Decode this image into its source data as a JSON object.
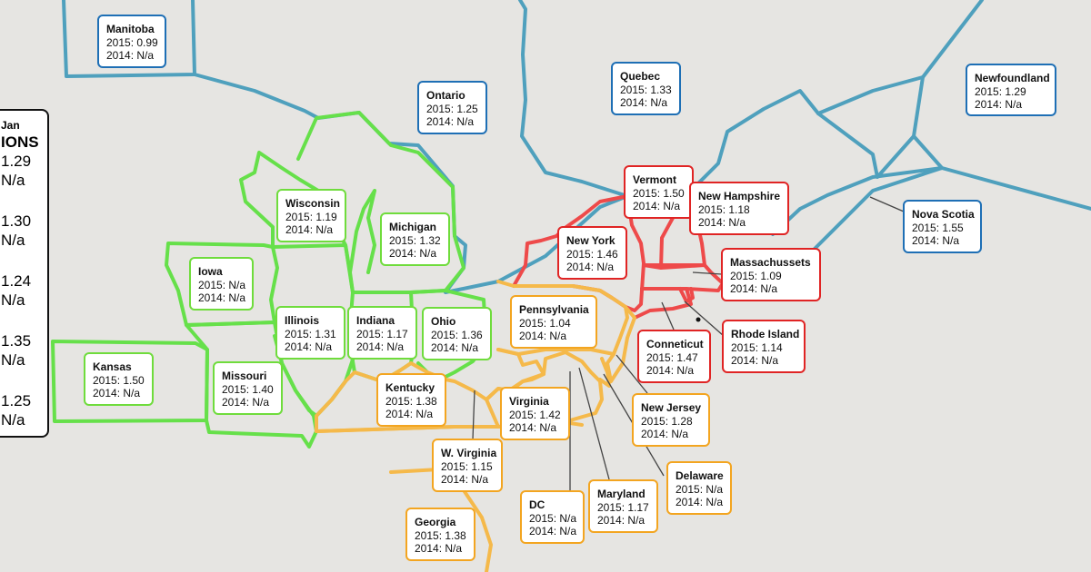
{
  "legend": {
    "month": "Jan",
    "heading": "IONS",
    "rows": [
      {
        "v2015": "1.29",
        "v2014": "N/a"
      },
      {
        "v2015": "1.30",
        "v2014": "N/a"
      },
      {
        "v2015": "1.24",
        "v2014": "N/a"
      },
      {
        "v2015": "1.35",
        "v2014": "N/a"
      },
      {
        "v2015": "1.25",
        "v2014": "N/a"
      }
    ]
  },
  "colors": {
    "background": "#e6e5e2",
    "canada": "#4fa0bd",
    "midwest": "#66e04a",
    "northeast": "#ee4a4a",
    "south": "#f5b94a",
    "card_canada": "#1e6fb5",
    "card_midwest": "#6fdc3c",
    "card_northeast": "#e02424",
    "card_south": "#f3a520"
  },
  "regions": [
    {
      "id": "manitoba",
      "name": "Manitoba",
      "v2015": "2015: 0.99",
      "v2014": "2014: N/a",
      "group": "blue"
    },
    {
      "id": "ontario",
      "name": "Ontario",
      "v2015": "2015: 1.25",
      "v2014": "2014: N/a",
      "group": "blue"
    },
    {
      "id": "quebec",
      "name": "Quebec",
      "v2015": "2015: 1.33",
      "v2014": "2014: N/a",
      "group": "blue"
    },
    {
      "id": "newfoundland",
      "name": "Newfoundland",
      "v2015": "2015: 1.29",
      "v2014": "2014: N/a",
      "group": "blue"
    },
    {
      "id": "nova-scotia",
      "name": "Nova Scotia",
      "v2015": "2015: 1.55",
      "v2014": "2014: N/a",
      "group": "blue"
    },
    {
      "id": "wisconsin",
      "name": "Wisconsin",
      "v2015": "2015: 1.19",
      "v2014": "2014: N/a",
      "group": "green"
    },
    {
      "id": "michigan",
      "name": "Michigan",
      "v2015": "2015: 1.32",
      "v2014": "2014: N/a",
      "group": "green"
    },
    {
      "id": "iowa",
      "name": "Iowa",
      "v2015": "2015: N/a",
      "v2014": "2014: N/a",
      "group": "green"
    },
    {
      "id": "illinois",
      "name": "Illinois",
      "v2015": "2015: 1.31",
      "v2014": "2014: N/a",
      "group": "green"
    },
    {
      "id": "indiana",
      "name": "Indiana",
      "v2015": "2015: 1.17",
      "v2014": "2014: N/a",
      "group": "green"
    },
    {
      "id": "ohio",
      "name": "Ohio",
      "v2015": "2015: 1.36",
      "v2014": "2014: N/a",
      "group": "green"
    },
    {
      "id": "kansas",
      "name": "Kansas",
      "v2015": "2015: 1.50",
      "v2014": "2014: N/a",
      "group": "green"
    },
    {
      "id": "missouri",
      "name": "Missouri",
      "v2015": "2015: 1.40",
      "v2014": "2014: N/a",
      "group": "green"
    },
    {
      "id": "vermont",
      "name": "Vermont",
      "v2015": "2015: 1.50",
      "v2014": "2014: N/a",
      "group": "red"
    },
    {
      "id": "new-hampshire",
      "name": "New Hampshire",
      "v2015": "2015: 1.18",
      "v2014": "2014: N/a",
      "group": "red"
    },
    {
      "id": "new-york",
      "name": "New York",
      "v2015": "2015: 1.46",
      "v2014": "2014: N/a",
      "group": "red"
    },
    {
      "id": "massachussets",
      "name": "Massachussets",
      "v2015": "2015: 1.09",
      "v2014": "2014: N/a",
      "group": "red"
    },
    {
      "id": "conneticut",
      "name": "Conneticut",
      "v2015": "2015: 1.47",
      "v2014": "2014: N/a",
      "group": "red"
    },
    {
      "id": "rhode-island",
      "name": "Rhode Island",
      "v2015": "2015: 1.14",
      "v2014": "2014: N/a",
      "group": "red"
    },
    {
      "id": "pennsylvania",
      "name": "Pennsylvania",
      "v2015": "2015: 1.04",
      "v2014": "2014: N/a",
      "group": "orange"
    },
    {
      "id": "kentucky",
      "name": "Kentucky",
      "v2015": "2015: 1.38",
      "v2014": "2014: N/a",
      "group": "orange"
    },
    {
      "id": "virginia",
      "name": "Virginia",
      "v2015": "2015: 1.42",
      "v2014": "2014: N/a",
      "group": "orange"
    },
    {
      "id": "new-jersey",
      "name": "New Jersey",
      "v2015": "2015: 1.28",
      "v2014": "2014: N/a",
      "group": "orange"
    },
    {
      "id": "w-virginia",
      "name": "W. Virginia",
      "v2015": "2015: 1.15",
      "v2014": "2014: N/a",
      "group": "orange"
    },
    {
      "id": "delaware",
      "name": "Delaware",
      "v2015": "2015: N/a",
      "v2014": "2014: N/a",
      "group": "orange"
    },
    {
      "id": "dc",
      "name": "DC",
      "v2015": "2015: N/a",
      "v2014": "2014: N/a",
      "group": "orange"
    },
    {
      "id": "maryland",
      "name": "Maryland",
      "v2015": "2015: 1.17",
      "v2014": "2014: N/a",
      "group": "orange"
    },
    {
      "id": "georgia",
      "name": "Georgia",
      "v2015": "2015: 1.38",
      "v2014": "2014: N/a",
      "group": "orange"
    }
  ]
}
